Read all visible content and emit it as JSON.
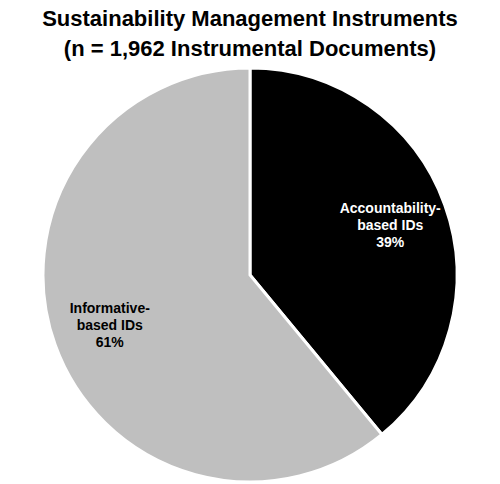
{
  "chart_data": {
    "type": "pie",
    "title": "Sustainability Management Instruments",
    "subtitle": "(n = 1,962 Instrumental Documents)",
    "categories": [
      "Accountability-based IDs",
      "Informative-based IDs"
    ],
    "values": [
      39,
      61
    ],
    "value_labels": [
      "39%",
      "61%"
    ],
    "colors": [
      "#000000",
      "#bfbfbf"
    ],
    "data_labels": true
  }
}
